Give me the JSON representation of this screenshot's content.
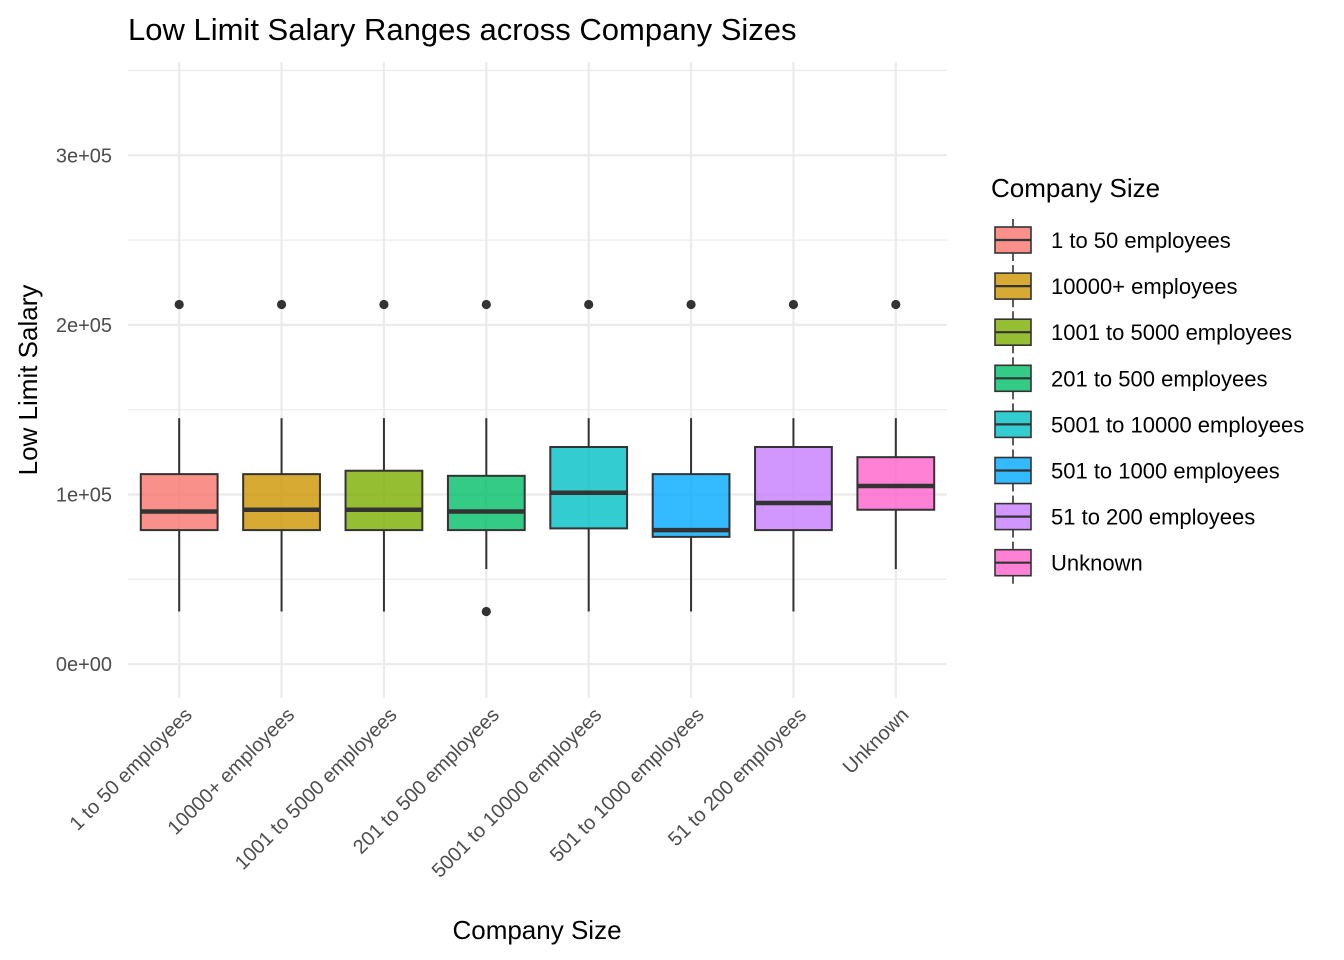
{
  "chart_data": {
    "type": "boxplot",
    "title": "Low Limit Salary Ranges across Company Sizes",
    "xlabel": "Company Size",
    "ylabel": "Low Limit Salary",
    "ylim": [
      -20000,
      355000
    ],
    "yticks": [
      {
        "value": 0,
        "label": "0e+00"
      },
      {
        "value": 100000,
        "label": "1e+05"
      },
      {
        "value": 200000,
        "label": "2e+05"
      },
      {
        "value": 300000,
        "label": "3e+05"
      }
    ],
    "y_minor_ticks": [
      50000,
      150000,
      250000,
      350000
    ],
    "grid": true,
    "legend_title": "Company Size",
    "legend_position": "right",
    "categories": [
      "1 to 50 employees",
      "10000+ employees",
      "1001 to 5000 employees",
      "201 to 500 employees",
      "5001 to 10000 employees",
      "501 to 1000 employees",
      "51 to 200 employees",
      "Unknown"
    ],
    "boxes": [
      {
        "name": "1 to 50 employees",
        "color": "#F8766D",
        "whisker_low": 31000,
        "q1": 79000,
        "median": 90000,
        "q3": 112000,
        "whisker_high": 145000,
        "outliers": [
          212000
        ]
      },
      {
        "name": "10000+ employees",
        "color": "#CD9600",
        "whisker_low": 31000,
        "q1": 79000,
        "median": 91000,
        "q3": 112000,
        "whisker_high": 145000,
        "outliers": [
          212000
        ]
      },
      {
        "name": "1001 to 5000 employees",
        "color": "#7CAE00",
        "whisker_low": 31000,
        "q1": 79000,
        "median": 91000,
        "q3": 114000,
        "whisker_high": 145000,
        "outliers": [
          212000
        ]
      },
      {
        "name": "201 to 500 employees",
        "color": "#00BE67",
        "whisker_low": 56000,
        "q1": 79000,
        "median": 90000,
        "q3": 111000,
        "whisker_high": 145000,
        "outliers": [
          31000,
          212000
        ]
      },
      {
        "name": "5001 to 10000 employees",
        "color": "#00BFC4",
        "whisker_low": 31000,
        "q1": 80000,
        "median": 101000,
        "q3": 128000,
        "whisker_high": 145000,
        "outliers": [
          212000
        ]
      },
      {
        "name": "501 to 1000 employees",
        "color": "#00A9FF",
        "whisker_low": 31000,
        "q1": 75000,
        "median": 79000,
        "q3": 112000,
        "whisker_high": 145000,
        "outliers": [
          212000
        ]
      },
      {
        "name": "51 to 200 employees",
        "color": "#C77CFF",
        "whisker_low": 31000,
        "q1": 79000,
        "median": 95000,
        "q3": 128000,
        "whisker_high": 145000,
        "outliers": [
          212000
        ]
      },
      {
        "name": "Unknown",
        "color": "#FF61CC",
        "whisker_low": 56000,
        "q1": 91000,
        "median": 105000,
        "q3": 122000,
        "whisker_high": 145000,
        "outliers": [
          212000
        ]
      }
    ]
  }
}
